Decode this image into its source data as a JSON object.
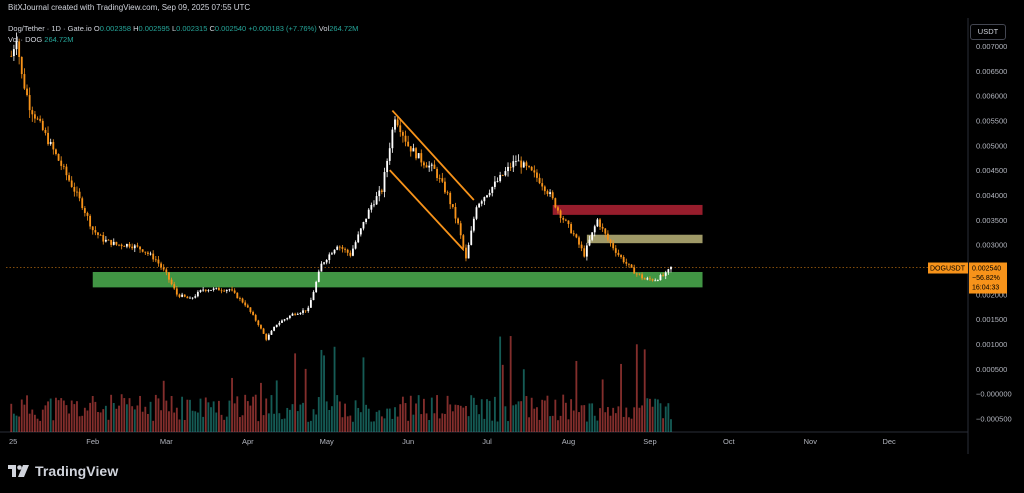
{
  "header": {
    "banner": "BitXJournal created with TradingView.com, Sep 09, 2025 07:55 UTC",
    "symbol": "Dog/Tether · 1D · Gate.io",
    "o_label": "O",
    "o_value": "0.002358",
    "h_label": "H",
    "h_value": "0.002595",
    "l_label": "L",
    "l_value": "0.002315",
    "c_label": "C",
    "c_value": "0.002540",
    "change": "+0.000183 (+7.76%)",
    "vol_label": "Vol",
    "vol_value": "264.72M",
    "vol_row_label": "Vol · DOG",
    "vol_row_value": "264.72M"
  },
  "currency": "USDT",
  "price_tag": {
    "symbol": "DOGUSDT",
    "price": "0.002540",
    "change_pct": "−56.82%",
    "countdown": "16:04:33"
  },
  "brand": {
    "name": "TradingView",
    "icon": "tradingview-logo-icon"
  },
  "colors": {
    "up": "#26a69a",
    "down": "#ef5350",
    "accent": "#f7931a",
    "red_zone": "#b22234",
    "green_zone": "#4caf50",
    "tan_zone": "#d4cc8a"
  },
  "chart_data": {
    "type": "candlestick",
    "title": "",
    "y_ticks": [
      "0.007000",
      "0.006500",
      "0.006000",
      "0.005500",
      "0.005000",
      "0.004500",
      "0.004000",
      "0.003500",
      "0.003000",
      "0.002000",
      "0.001500",
      "0.001000",
      "0.000500",
      "−0.000000",
      "−0.000500"
    ],
    "x_ticks": [
      "25",
      "Feb",
      "Mar",
      "Apr",
      "May",
      "Jun",
      "Jul",
      "Aug",
      "Sep",
      "Oct",
      "Nov",
      "Dec"
    ],
    "ylim": [
      -0.0006,
      0.0074
    ],
    "last_price": 0.00254,
    "price_path": [
      [
        "2025-01-01",
        0.0068
      ],
      [
        "2025-01-03",
        0.0072
      ],
      [
        "2025-01-05",
        0.0064
      ],
      [
        "2025-01-08",
        0.0058
      ],
      [
        "2025-01-12",
        0.0054
      ],
      [
        "2025-01-16",
        0.005
      ],
      [
        "2025-01-20",
        0.0046
      ],
      [
        "2025-01-24",
        0.0042
      ],
      [
        "2025-01-28",
        0.0038
      ],
      [
        "2025-02-01",
        0.0033
      ],
      [
        "2025-02-05",
        0.0031
      ],
      [
        "2025-02-10",
        0.003
      ],
      [
        "2025-02-15",
        0.003
      ],
      [
        "2025-02-20",
        0.0029
      ],
      [
        "2025-02-25",
        0.0027
      ],
      [
        "2025-03-01",
        0.0024
      ],
      [
        "2025-03-05",
        0.002
      ],
      [
        "2025-03-10",
        0.0019
      ],
      [
        "2025-03-15",
        0.0021
      ],
      [
        "2025-03-20",
        0.0021
      ],
      [
        "2025-03-25",
        0.0021
      ],
      [
        "2025-03-31",
        0.0018
      ],
      [
        "2025-04-05",
        0.0014
      ],
      [
        "2025-04-08",
        0.0011
      ],
      [
        "2025-04-12",
        0.0014
      ],
      [
        "2025-04-18",
        0.0016
      ],
      [
        "2025-04-24",
        0.0017
      ],
      [
        "2025-04-29",
        0.0026
      ],
      [
        "2025-05-05",
        0.003
      ],
      [
        "2025-05-10",
        0.0028
      ],
      [
        "2025-05-14",
        0.0033
      ],
      [
        "2025-05-18",
        0.0038
      ],
      [
        "2025-05-22",
        0.0041
      ],
      [
        "2025-05-25",
        0.005
      ],
      [
        "2025-05-27",
        0.0056
      ],
      [
        "2025-06-01",
        0.005
      ],
      [
        "2025-06-06",
        0.0047
      ],
      [
        "2025-06-11",
        0.0045
      ],
      [
        "2025-06-16",
        0.004
      ],
      [
        "2025-06-20",
        0.0034
      ],
      [
        "2025-06-23",
        0.0027
      ],
      [
        "2025-06-27",
        0.0038
      ],
      [
        "2025-07-02",
        0.0041
      ],
      [
        "2025-07-07",
        0.0044
      ],
      [
        "2025-07-12",
        0.0047
      ],
      [
        "2025-07-17",
        0.0045
      ],
      [
        "2025-07-21",
        0.0043
      ],
      [
        "2025-07-25",
        0.004
      ],
      [
        "2025-07-29",
        0.0036
      ],
      [
        "2025-08-03",
        0.0032
      ],
      [
        "2025-08-07",
        0.0028
      ],
      [
        "2025-08-12",
        0.0035
      ],
      [
        "2025-08-16",
        0.0031
      ],
      [
        "2025-08-20",
        0.0028
      ],
      [
        "2025-08-25",
        0.0025
      ],
      [
        "2025-08-30",
        0.0023
      ],
      [
        "2025-09-03",
        0.0023
      ],
      [
        "2025-09-07",
        0.0024
      ],
      [
        "2025-09-09",
        0.00254
      ]
    ],
    "zones": [
      {
        "name": "resistance-zone",
        "from": "2025-07-26",
        "to": "2025-09-21",
        "low": 0.0036,
        "high": 0.0038,
        "color": "#b22234"
      },
      {
        "name": "mid-zone",
        "from": "2025-08-08",
        "to": "2025-09-21",
        "low": 0.00303,
        "high": 0.0032,
        "color": "#d4cc8a"
      },
      {
        "name": "support-zone",
        "from": "2025-02-01",
        "to": "2025-09-21",
        "low": 0.00214,
        "high": 0.00245,
        "color": "#4caf50"
      }
    ],
    "channel": {
      "upper": [
        [
          "2025-05-26",
          0.0057
        ],
        [
          "2025-06-26",
          0.0039
        ]
      ],
      "lower": [
        [
          "2025-05-25",
          0.0045
        ],
        [
          "2025-06-22",
          0.0029
        ]
      ],
      "color": "#f7931a"
    }
  }
}
